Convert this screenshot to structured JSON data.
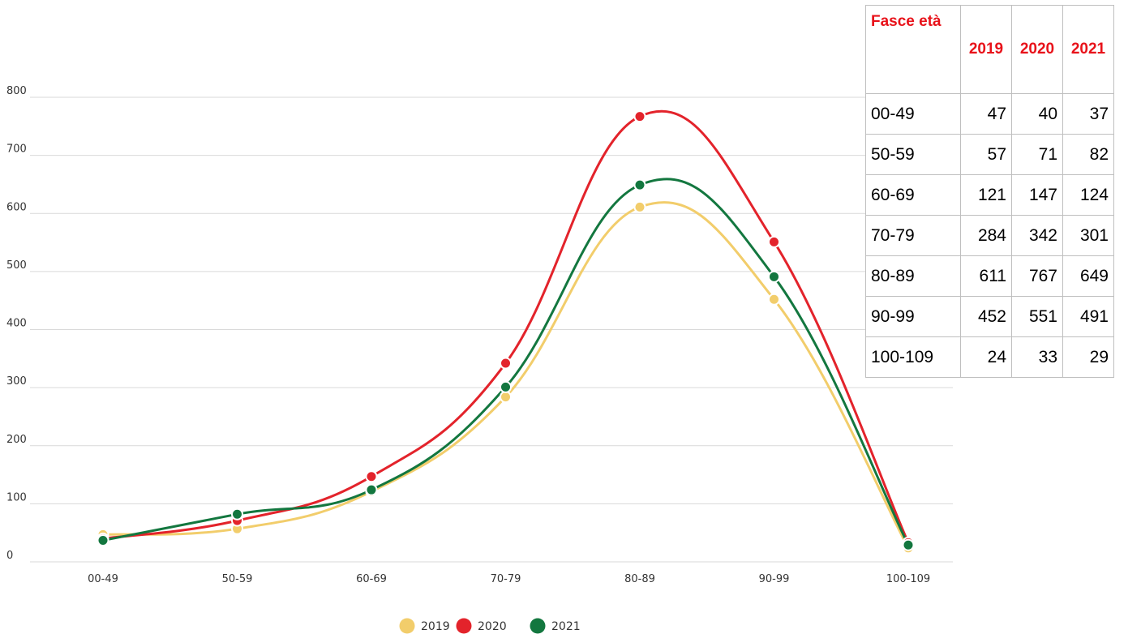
{
  "chart_data": {
    "type": "line",
    "categories": [
      "00-49",
      "50-59",
      "60-69",
      "70-79",
      "80-89",
      "90-99",
      "100-109"
    ],
    "series": [
      {
        "name": "2019",
        "color": "#f2cd6b",
        "values": [
          47,
          57,
          121,
          284,
          611,
          452,
          24
        ]
      },
      {
        "name": "2020",
        "color": "#e3232b",
        "values": [
          40,
          71,
          147,
          342,
          767,
          551,
          33
        ]
      },
      {
        "name": "2021",
        "color": "#13773f",
        "values": [
          37,
          82,
          124,
          301,
          649,
          491,
          29
        ]
      }
    ],
    "y_ticks": [
      "0",
      "100",
      "200",
      "300",
      "400",
      "500",
      "600",
      "700",
      "800"
    ],
    "ylim": [
      0,
      800
    ],
    "grid": true,
    "legend_position": "bottom-center",
    "smooth": true
  },
  "table": {
    "header_label": "Fasce età",
    "years": [
      "2019",
      "2020",
      "2021"
    ],
    "rows": [
      {
        "range": "00-49",
        "values": [
          "47",
          "40",
          "37"
        ]
      },
      {
        "range": "50-59",
        "values": [
          "57",
          "71",
          "82"
        ]
      },
      {
        "range": "60-69",
        "values": [
          "121",
          "147",
          "124"
        ]
      },
      {
        "range": "70-79",
        "values": [
          "284",
          "342",
          "301"
        ]
      },
      {
        "range": "80-89",
        "values": [
          "611",
          "767",
          "649"
        ]
      },
      {
        "range": "90-99",
        "values": [
          "452",
          "551",
          "491"
        ]
      },
      {
        "range": "100-109",
        "values": [
          "24",
          "33",
          "29"
        ]
      }
    ]
  }
}
